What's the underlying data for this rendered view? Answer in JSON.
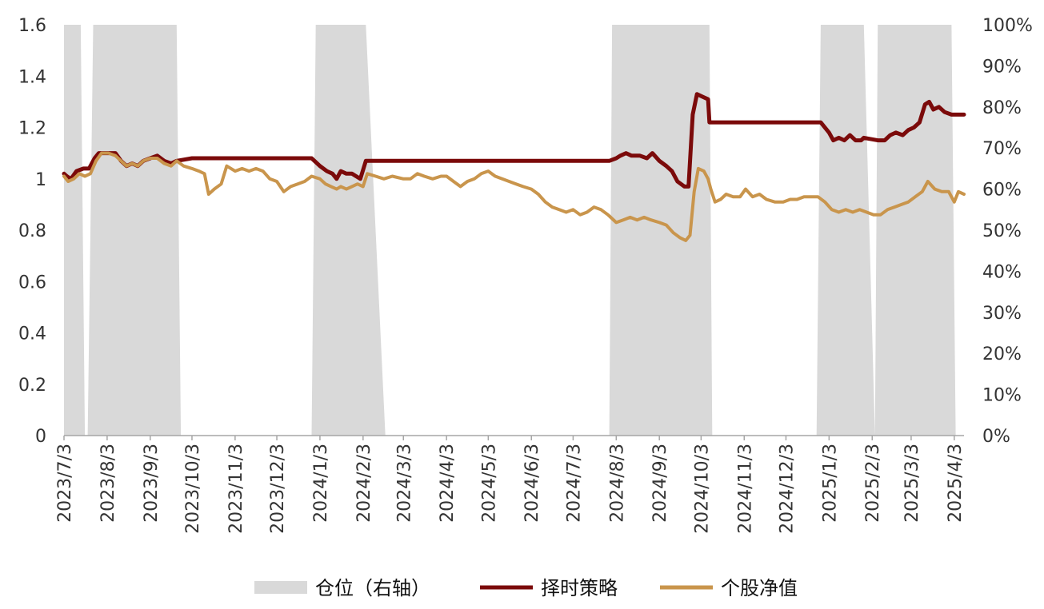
{
  "chart_data": {
    "type": "line",
    "x_axis": {
      "tick_labels": [
        "2023/7/3",
        "2023/8/3",
        "2023/9/3",
        "2023/10/3",
        "2023/11/3",
        "2023/12/3",
        "2024/1/3",
        "2024/2/3",
        "2024/3/3",
        "2024/4/3",
        "2024/5/3",
        "2024/6/3",
        "2024/7/3",
        "2024/8/3",
        "2024/9/3",
        "2024/10/3",
        "2024/11/3",
        "2024/12/3",
        "2025/1/3",
        "2025/2/3",
        "2025/3/3",
        "2025/4/3"
      ]
    },
    "y_left": {
      "ylim": [
        0,
        1.6
      ],
      "tick_labels": [
        "0",
        "0.2",
        "0.4",
        "0.6",
        "0.8",
        "1",
        "1.2",
        "1.4",
        "1.6"
      ]
    },
    "y_right": {
      "ylim": [
        0,
        100
      ],
      "tick_labels": [
        "0%",
        "10%",
        "20%",
        "30%",
        "40%",
        "50%",
        "60%",
        "70%",
        "80%",
        "90%",
        "100%"
      ]
    },
    "grid": false,
    "legend_position": "bottom",
    "series": [
      {
        "name": "仓位（右轴）",
        "kind": "area",
        "axis": "right",
        "color": "#d9d9d9",
        "points": [
          [
            "2023/7/3",
            100
          ],
          [
            "2023/7/15",
            100
          ],
          [
            "2023/7/18",
            0
          ],
          [
            "2023/7/20",
            0
          ],
          [
            "2023/7/24",
            100
          ],
          [
            "2023/9/22",
            100
          ],
          [
            "2023/9/25",
            0
          ],
          [
            "2023/12/28",
            0
          ],
          [
            "2023/12/31",
            100
          ],
          [
            "2024/2/5",
            100
          ],
          [
            "2024/2/19",
            0
          ],
          [
            "2024/7/29",
            0
          ],
          [
            "2024/7/31",
            100
          ],
          [
            "2024/10/9",
            100
          ],
          [
            "2024/10/11",
            0
          ],
          [
            "2024/12/25",
            0
          ],
          [
            "2024/12/28",
            100
          ],
          [
            "2025/1/28",
            100
          ],
          [
            "2025/2/5",
            0
          ],
          [
            "2025/2/7",
            100
          ],
          [
            "2025/4/1",
            100
          ],
          [
            "2025/4/4",
            0
          ],
          [
            "2025/4/10",
            0
          ]
        ]
      },
      {
        "name": "择时策略",
        "kind": "line",
        "axis": "left",
        "color": "#7b0a0a",
        "points": [
          [
            "2023/7/3",
            1.02
          ],
          [
            "2023/7/5",
            1.01
          ],
          [
            "2023/7/8",
            1.0
          ],
          [
            "2023/7/12",
            1.03
          ],
          [
            "2023/7/17",
            1.04
          ],
          [
            "2023/7/21",
            1.04
          ],
          [
            "2023/7/25",
            1.08
          ],
          [
            "2023/7/28",
            1.1
          ],
          [
            "2023/8/3",
            1.1
          ],
          [
            "2023/8/9",
            1.1
          ],
          [
            "2023/8/13",
            1.07
          ],
          [
            "2023/8/17",
            1.05
          ],
          [
            "2023/8/21",
            1.06
          ],
          [
            "2023/8/25",
            1.05
          ],
          [
            "2023/8/29",
            1.07
          ],
          [
            "2023/9/3",
            1.08
          ],
          [
            "2023/9/8",
            1.09
          ],
          [
            "2023/9/13",
            1.07
          ],
          [
            "2023/9/18",
            1.06
          ],
          [
            "2023/9/22",
            1.07
          ],
          [
            "2023/10/3",
            1.08
          ],
          [
            "2023/12/28",
            1.08
          ],
          [
            "2024/1/3",
            1.05
          ],
          [
            "2024/1/8",
            1.03
          ],
          [
            "2024/1/12",
            1.02
          ],
          [
            "2024/1/15",
            1.0
          ],
          [
            "2024/1/18",
            1.03
          ],
          [
            "2024/1/22",
            1.02
          ],
          [
            "2024/1/26",
            1.02
          ],
          [
            "2024/2/1",
            1.0
          ],
          [
            "2024/2/5",
            1.07
          ],
          [
            "2024/2/10",
            1.07
          ],
          [
            "2024/7/29",
            1.07
          ],
          [
            "2024/8/3",
            1.08
          ],
          [
            "2024/8/6",
            1.09
          ],
          [
            "2024/8/10",
            1.1
          ],
          [
            "2024/8/14",
            1.09
          ],
          [
            "2024/8/20",
            1.09
          ],
          [
            "2024/8/25",
            1.08
          ],
          [
            "2024/8/29",
            1.1
          ],
          [
            "2024/9/3",
            1.07
          ],
          [
            "2024/9/8",
            1.05
          ],
          [
            "2024/9/12",
            1.03
          ],
          [
            "2024/9/16",
            0.99
          ],
          [
            "2024/9/21",
            0.97
          ],
          [
            "2024/9/24",
            0.97
          ],
          [
            "2024/9/27",
            1.25
          ],
          [
            "2024/9/30",
            1.33
          ],
          [
            "2024/10/4",
            1.32
          ],
          [
            "2024/10/8",
            1.31
          ],
          [
            "2024/10/9",
            1.22
          ],
          [
            "2024/12/28",
            1.22
          ],
          [
            "2025/1/3",
            1.18
          ],
          [
            "2025/1/6",
            1.15
          ],
          [
            "2025/1/10",
            1.16
          ],
          [
            "2025/1/14",
            1.15
          ],
          [
            "2025/1/18",
            1.17
          ],
          [
            "2025/1/22",
            1.15
          ],
          [
            "2025/1/26",
            1.15
          ],
          [
            "2025/1/28",
            1.16
          ],
          [
            "2025/2/7",
            1.15
          ],
          [
            "2025/2/12",
            1.15
          ],
          [
            "2025/2/16",
            1.17
          ],
          [
            "2025/2/20",
            1.18
          ],
          [
            "2025/2/25",
            1.17
          ],
          [
            "2025/3/1",
            1.19
          ],
          [
            "2025/3/5",
            1.2
          ],
          [
            "2025/3/9",
            1.22
          ],
          [
            "2025/3/13",
            1.29
          ],
          [
            "2025/3/16",
            1.3
          ],
          [
            "2025/3/19",
            1.27
          ],
          [
            "2025/3/23",
            1.28
          ],
          [
            "2025/3/27",
            1.26
          ],
          [
            "2025/4/1",
            1.25
          ],
          [
            "2025/4/10",
            1.25
          ]
        ]
      },
      {
        "name": "个股净值",
        "kind": "line",
        "axis": "left",
        "color": "#c9954c",
        "points": [
          [
            "2023/7/3",
            1.01
          ],
          [
            "2023/7/6",
            0.99
          ],
          [
            "2023/7/10",
            1.0
          ],
          [
            "2023/7/14",
            1.02
          ],
          [
            "2023/7/18",
            1.01
          ],
          [
            "2023/7/22",
            1.02
          ],
          [
            "2023/7/26",
            1.07
          ],
          [
            "2023/7/30",
            1.1
          ],
          [
            "2023/8/4",
            1.1
          ],
          [
            "2023/8/9",
            1.09
          ],
          [
            "2023/8/13",
            1.07
          ],
          [
            "2023/8/17",
            1.05
          ],
          [
            "2023/8/21",
            1.06
          ],
          [
            "2023/8/25",
            1.05
          ],
          [
            "2023/8/29",
            1.07
          ],
          [
            "2023/9/3",
            1.08
          ],
          [
            "2023/9/8",
            1.08
          ],
          [
            "2023/9/13",
            1.06
          ],
          [
            "2023/9/18",
            1.05
          ],
          [
            "2023/9/22",
            1.07
          ],
          [
            "2023/9/27",
            1.05
          ],
          [
            "2023/10/3",
            1.04
          ],
          [
            "2023/10/8",
            1.03
          ],
          [
            "2023/10/12",
            1.02
          ],
          [
            "2023/10/15",
            0.94
          ],
          [
            "2023/10/19",
            0.96
          ],
          [
            "2023/10/24",
            0.98
          ],
          [
            "2023/10/28",
            1.05
          ],
          [
            "2023/11/3",
            1.03
          ],
          [
            "2023/11/8",
            1.04
          ],
          [
            "2023/11/13",
            1.03
          ],
          [
            "2023/11/18",
            1.04
          ],
          [
            "2023/11/23",
            1.03
          ],
          [
            "2023/11/28",
            1.0
          ],
          [
            "2023/12/3",
            0.99
          ],
          [
            "2023/12/8",
            0.95
          ],
          [
            "2023/12/13",
            0.97
          ],
          [
            "2023/12/18",
            0.98
          ],
          [
            "2023/12/23",
            0.99
          ],
          [
            "2023/12/28",
            1.01
          ],
          [
            "2024/1/3",
            1.0
          ],
          [
            "2024/1/7",
            0.98
          ],
          [
            "2024/1/11",
            0.97
          ],
          [
            "2024/1/15",
            0.96
          ],
          [
            "2024/1/18",
            0.97
          ],
          [
            "2024/1/22",
            0.96
          ],
          [
            "2024/1/26",
            0.97
          ],
          [
            "2024/1/30",
            0.98
          ],
          [
            "2024/2/3",
            0.97
          ],
          [
            "2024/2/6",
            1.02
          ],
          [
            "2024/2/12",
            1.01
          ],
          [
            "2024/2/18",
            1.0
          ],
          [
            "2024/2/24",
            1.01
          ],
          [
            "2024/3/3",
            1.0
          ],
          [
            "2024/3/8",
            1.0
          ],
          [
            "2024/3/13",
            1.02
          ],
          [
            "2024/3/18",
            1.01
          ],
          [
            "2024/3/24",
            1.0
          ],
          [
            "2024/3/30",
            1.01
          ],
          [
            "2024/4/3",
            1.01
          ],
          [
            "2024/4/8",
            0.99
          ],
          [
            "2024/4/13",
            0.97
          ],
          [
            "2024/4/18",
            0.99
          ],
          [
            "2024/4/23",
            1.0
          ],
          [
            "2024/4/28",
            1.02
          ],
          [
            "2024/5/3",
            1.03
          ],
          [
            "2024/5/8",
            1.01
          ],
          [
            "2024/5/13",
            1.0
          ],
          [
            "2024/5/18",
            0.99
          ],
          [
            "2024/5/23",
            0.98
          ],
          [
            "2024/5/28",
            0.97
          ],
          [
            "2024/6/3",
            0.96
          ],
          [
            "2024/6/8",
            0.94
          ],
          [
            "2024/6/13",
            0.91
          ],
          [
            "2024/6/18",
            0.89
          ],
          [
            "2024/6/23",
            0.88
          ],
          [
            "2024/6/28",
            0.87
          ],
          [
            "2024/7/3",
            0.88
          ],
          [
            "2024/7/8",
            0.86
          ],
          [
            "2024/7/13",
            0.87
          ],
          [
            "2024/7/18",
            0.89
          ],
          [
            "2024/7/23",
            0.88
          ],
          [
            "2024/7/28",
            0.86
          ],
          [
            "2024/8/3",
            0.83
          ],
          [
            "2024/8/8",
            0.84
          ],
          [
            "2024/8/13",
            0.85
          ],
          [
            "2024/8/18",
            0.84
          ],
          [
            "2024/8/23",
            0.85
          ],
          [
            "2024/8/28",
            0.84
          ],
          [
            "2024/9/3",
            0.83
          ],
          [
            "2024/9/8",
            0.82
          ],
          [
            "2024/9/13",
            0.79
          ],
          [
            "2024/9/18",
            0.77
          ],
          [
            "2024/9/22",
            0.76
          ],
          [
            "2024/9/25",
            0.78
          ],
          [
            "2024/9/28",
            0.95
          ],
          [
            "2024/10/1",
            1.04
          ],
          [
            "2024/10/5",
            1.03
          ],
          [
            "2024/10/8",
            1.0
          ],
          [
            "2024/10/10",
            0.96
          ],
          [
            "2024/10/13",
            0.91
          ],
          [
            "2024/10/17",
            0.92
          ],
          [
            "2024/10/21",
            0.94
          ],
          [
            "2024/10/26",
            0.93
          ],
          [
            "2024/10/31",
            0.93
          ],
          [
            "2024/11/4",
            0.96
          ],
          [
            "2024/11/9",
            0.93
          ],
          [
            "2024/11/14",
            0.94
          ],
          [
            "2024/11/19",
            0.92
          ],
          [
            "2024/11/25",
            0.91
          ],
          [
            "2024/12/1",
            0.91
          ],
          [
            "2024/12/6",
            0.92
          ],
          [
            "2024/12/11",
            0.92
          ],
          [
            "2024/12/16",
            0.93
          ],
          [
            "2024/12/21",
            0.93
          ],
          [
            "2024/12/26",
            0.93
          ],
          [
            "2024/12/31",
            0.91
          ],
          [
            "2025/1/5",
            0.88
          ],
          [
            "2025/1/10",
            0.87
          ],
          [
            "2025/1/15",
            0.88
          ],
          [
            "2025/1/20",
            0.87
          ],
          [
            "2025/1/25",
            0.88
          ],
          [
            "2025/1/30",
            0.87
          ],
          [
            "2025/2/4",
            0.86
          ],
          [
            "2025/2/9",
            0.86
          ],
          [
            "2025/2/14",
            0.88
          ],
          [
            "2025/2/19",
            0.89
          ],
          [
            "2025/2/24",
            0.9
          ],
          [
            "2025/3/1",
            0.91
          ],
          [
            "2025/3/6",
            0.93
          ],
          [
            "2025/3/11",
            0.95
          ],
          [
            "2025/3/15",
            0.99
          ],
          [
            "2025/3/20",
            0.96
          ],
          [
            "2025/3/25",
            0.95
          ],
          [
            "2025/3/30",
            0.95
          ],
          [
            "2025/4/3",
            0.91
          ],
          [
            "2025/4/6",
            0.95
          ],
          [
            "2025/4/10",
            0.94
          ]
        ]
      }
    ]
  }
}
